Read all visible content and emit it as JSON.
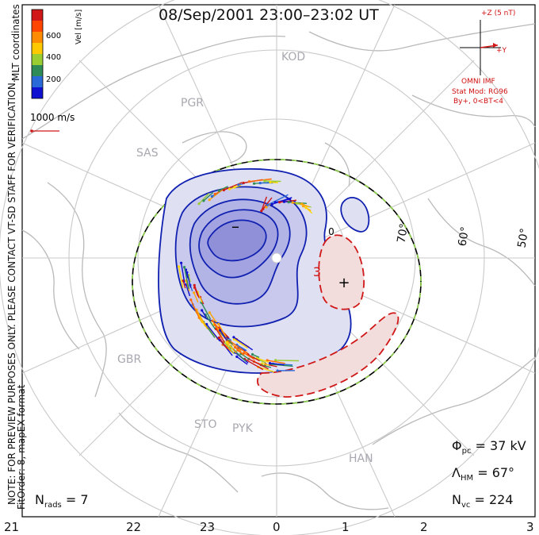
{
  "title": "08/Sep/2001 23:00–23:02 UT",
  "colorbar": {
    "label": "Vel [m/s]",
    "ticks": [
      "600",
      "400",
      "200"
    ],
    "colors": [
      "#d01818",
      "#ff6a00",
      "#ffa500",
      "#ffd800",
      "#9acd32",
      "#2e8b57",
      "#2a6ad8",
      "#1010d0"
    ]
  },
  "coord_system": "MLT coordinates",
  "scale_vector": "1000 m/s",
  "imf": {
    "z_label": "+Z (5 nT)",
    "y_label": "+Y",
    "source": "OMNI IMF",
    "model": "Stat Mod: RG96",
    "condition": "By+, 0<BT<4"
  },
  "notice": "NOTE: FOR PREVIEW PURPOSES ONLY. PLEASE CONTACT VT-SD STAFF FOR VERIFICATION.",
  "fit": "FitOrder: 8,  mapEX format",
  "stations": [
    "KOD",
    "PGR",
    "SAS",
    "GBR",
    "STO",
    "PYK",
    "HAN"
  ],
  "latitudes": [
    "70°",
    "60°",
    "50°"
  ],
  "contour_marks": {
    "min": "–",
    "max": "+",
    "zero": "0",
    "three": "3"
  },
  "stats": {
    "phi_label": "Φ",
    "phi_sub": "pc",
    "phi_value": "= 37 kV",
    "lambda_label": "Λ",
    "lambda_sub": "HM",
    "lambda_value": "= 67°",
    "nvc_label": "N",
    "nvc_sub": "vc",
    "nvc_value": "= 224",
    "nrads_label": "N",
    "nrads_sub": "rads",
    "nrads_value": "= 7"
  },
  "mlt_ticks": [
    "21",
    "22",
    "23",
    "0",
    "1",
    "2",
    "3"
  ]
}
